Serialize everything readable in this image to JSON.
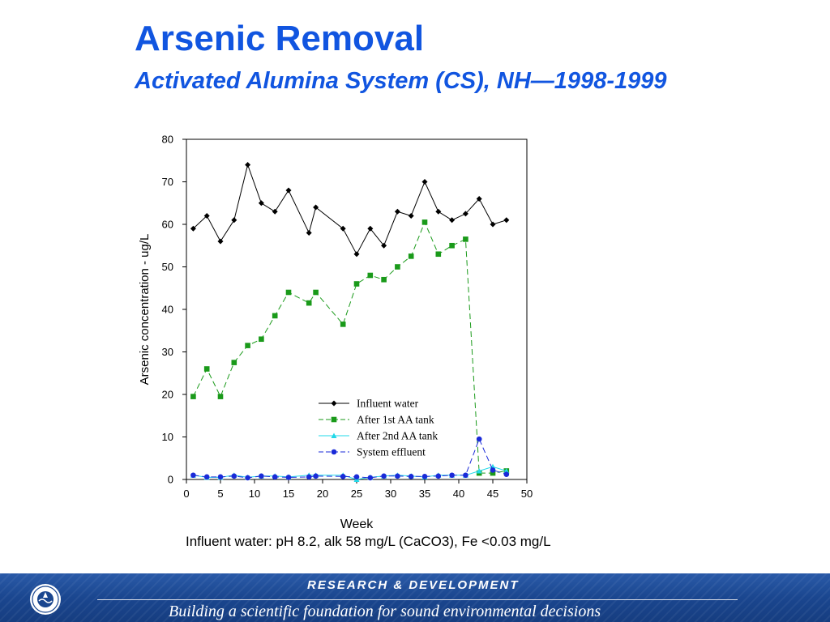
{
  "slide": {
    "title": "Arsenic Removal",
    "subtitle": "Activated Alumina System (CS), NH—1998-1999"
  },
  "chart_data": {
    "type": "line",
    "title": "",
    "xlabel": "Week",
    "ylabel": "Arsenic concentration - ug/L",
    "xlim": [
      0,
      50
    ],
    "ylim": [
      0,
      80
    ],
    "xticks": [
      0,
      5,
      10,
      15,
      20,
      25,
      30,
      35,
      40,
      45,
      50
    ],
    "yticks": [
      0,
      10,
      20,
      30,
      40,
      50,
      60,
      70,
      80
    ],
    "grid": false,
    "legend_position": "lower-center",
    "footnote": "Influent water: pH 8.2, alk 58 mg/L (CaCO3), Fe <0.03 mg/L",
    "series": [
      {
        "name": "Influent water",
        "color": "#000000",
        "marker": "diamond",
        "line": "solid",
        "x": [
          1,
          3,
          5,
          7,
          9,
          11,
          13,
          15,
          18,
          19,
          23,
          25,
          27,
          29,
          31,
          33,
          35,
          37,
          39,
          41,
          43,
          45,
          47
        ],
        "y": [
          59,
          62,
          56,
          61,
          74,
          65,
          63,
          68,
          58,
          64,
          59,
          53,
          59,
          55,
          63,
          62,
          70,
          63,
          61,
          62.5,
          66,
          60,
          61
        ]
      },
      {
        "name": "After 1st AA tank",
        "color": "#1a9a1a",
        "marker": "square",
        "line": "dashed",
        "x": [
          1,
          3,
          5,
          7,
          9,
          11,
          13,
          15,
          18,
          19,
          23,
          25,
          27,
          29,
          31,
          33,
          35,
          37,
          39,
          41,
          43,
          45,
          47
        ],
        "y": [
          19.5,
          26,
          19.5,
          27.5,
          31.5,
          33,
          38.5,
          44,
          41.5,
          44,
          36.5,
          46,
          48,
          47,
          50,
          52.5,
          60.5,
          53,
          55,
          56.5,
          1.5,
          1.5,
          2
        ]
      },
      {
        "name": "After 2nd AA tank",
        "color": "#22d8e8",
        "marker": "triangle",
        "line": "solid",
        "x": [
          1,
          3,
          5,
          7,
          9,
          11,
          13,
          15,
          18,
          19,
          23,
          25,
          27,
          29,
          31,
          33,
          35,
          37,
          39,
          41,
          43,
          45,
          47
        ],
        "y": [
          1,
          0.5,
          0.5,
          1,
          0.5,
          0.8,
          0.8,
          0.6,
          1,
          1,
          1,
          0,
          0.5,
          0.8,
          1,
          0.8,
          0.6,
          1,
          1,
          1,
          2,
          3,
          2
        ]
      },
      {
        "name": "System effluent",
        "color": "#1a2ad8",
        "marker": "circle",
        "line": "dashed",
        "x": [
          1,
          3,
          5,
          7,
          9,
          11,
          13,
          15,
          18,
          19,
          23,
          25,
          27,
          29,
          31,
          33,
          35,
          37,
          39,
          41,
          43,
          45,
          47
        ],
        "y": [
          1,
          0.6,
          0.6,
          0.8,
          0.4,
          0.8,
          0.6,
          0.5,
          0.6,
          0.8,
          0.7,
          0.6,
          0.4,
          0.8,
          0.8,
          0.7,
          0.7,
          0.8,
          1,
          1,
          9.5,
          2.2,
          1.2
        ]
      }
    ]
  },
  "footer": {
    "top_text": "RESEARCH &  DEVELOPMENT",
    "bottom_text": "Building a scientific foundation for sound environmental decisions",
    "seal_icon": "epa-seal-icon"
  }
}
